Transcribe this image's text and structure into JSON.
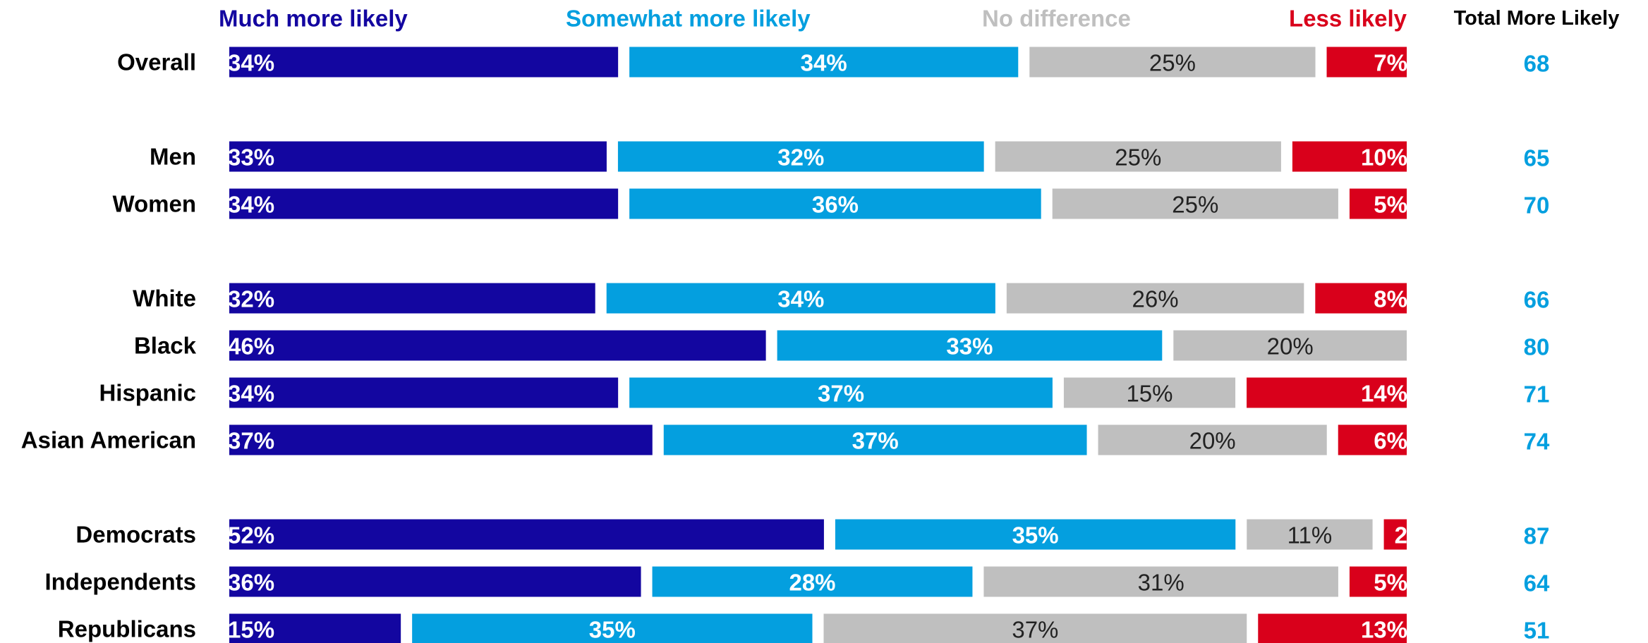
{
  "chart_data": {
    "type": "bar",
    "orientation": "horizontal",
    "stacked": true,
    "series": [
      {
        "name": "Much more likely",
        "color": "#1306A0",
        "label_color": "#ffffff",
        "label_weight": "bold",
        "label_align": "left",
        "values": [
          34,
          33,
          34,
          32,
          46,
          34,
          37,
          52,
          36,
          15
        ],
        "labels": [
          "34%",
          "33%",
          "34%",
          "32%",
          "46%",
          "34%",
          "37%",
          "52%",
          "36%",
          "15%"
        ]
      },
      {
        "name": "Somewhat more likely",
        "color": "#049FDF",
        "label_color": "#ffffff",
        "label_weight": "bold",
        "label_align": "center",
        "values": [
          34,
          32,
          36,
          34,
          33,
          37,
          37,
          35,
          28,
          35
        ],
        "labels": [
          "34%",
          "32%",
          "36%",
          "34%",
          "33%",
          "37%",
          "37%",
          "35%",
          "28%",
          "35%"
        ]
      },
      {
        "name": "No difference",
        "color": "#BFBFBF",
        "label_color": "#222222",
        "label_weight": "normal",
        "label_align": "center",
        "values": [
          25,
          25,
          25,
          26,
          20,
          15,
          20,
          11,
          31,
          37
        ],
        "labels": [
          "25%",
          "25%",
          "25%",
          "26%",
          "20%",
          "15%",
          "20%",
          "11%",
          "31%",
          "37%"
        ]
      },
      {
        "name": "Less likely",
        "color": "#D9001B",
        "label_color": "#ffffff",
        "label_weight": "bold",
        "label_align": "right",
        "values": [
          7,
          10,
          5,
          8,
          0,
          14,
          6,
          2,
          5,
          13
        ],
        "labels": [
          "7%",
          "10%",
          "5%",
          "8%",
          "",
          "14%",
          "6%",
          "2",
          "5%",
          "13%"
        ]
      }
    ],
    "legend": {
      "labels": [
        "Much more likely",
        "Somewhat more likely",
        "No difference",
        "Less likely"
      ],
      "colors": [
        "#1306A0",
        "#049FDF",
        "#BFBFBF",
        "#D9001B"
      ],
      "placement": "top"
    },
    "totals": {
      "header": "Total More Likely",
      "color": "#049FDF",
      "values": [
        "68",
        "65",
        "70",
        "66",
        "80",
        "71",
        "74",
        "87",
        "64",
        "51"
      ]
    },
    "categories": [
      "Overall",
      "Men",
      "Women",
      "White",
      "Black",
      "Hispanic",
      "Asian American",
      "Democrats",
      "Independents",
      "Republicans"
    ],
    "groups": [
      [
        0
      ],
      [
        1,
        2
      ],
      [
        3,
        4,
        5,
        6
      ],
      [
        7,
        8,
        9
      ]
    ],
    "title": "",
    "xlabel": "",
    "ylabel": "",
    "xlim": [
      0,
      100
    ],
    "grid": false
  }
}
